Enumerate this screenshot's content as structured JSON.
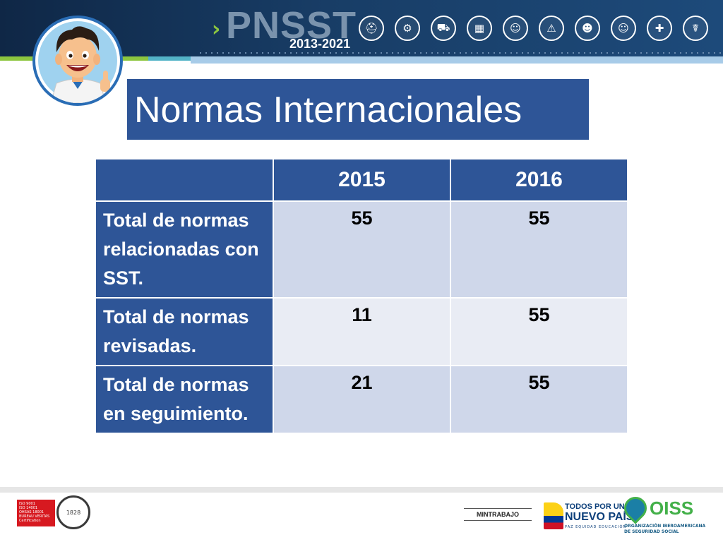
{
  "header": {
    "brand_name": "PNSST",
    "brand_years": "2013-2021",
    "icons": [
      "construction-worker-icon",
      "factory-icon",
      "truck-icon",
      "building-icon",
      "helmet-icon",
      "oil-rig-icon",
      "worker-icon",
      "safety-worker-icon",
      "nurse-icon",
      "doctor-icon"
    ]
  },
  "title": "Normas Internacionales",
  "table": {
    "columns": [
      "",
      "2015",
      "2016"
    ],
    "rows": [
      {
        "label": "Total de normas relacionadas con SST.",
        "values": [
          "55",
          "55"
        ]
      },
      {
        "label": "Total de normas revisadas.",
        "values": [
          "11",
          "55"
        ]
      },
      {
        "label": "Total de normas en seguimiento.",
        "values": [
          "21",
          "55"
        ]
      }
    ]
  },
  "footer": {
    "cert_text": "ISO 9001\nISO 14001\nOHSAS 18001\nBUREAU VERITAS\nCertification",
    "bv_seal_text": "1828",
    "mintrabajo": "MINTRABAJO",
    "tpun_line1": "TODOS POR UN",
    "tpun_line2": "NUEVO PAÍS",
    "tpun_line3": "PAZ  EQUIDAD  EDUCACIÓN",
    "oiss_name": "OISS",
    "oiss_sub1": "ORGANIZACIÓN IBEROAMERICANA",
    "oiss_sub2": "DE SEGURIDAD SOCIAL"
  },
  "colors": {
    "header_dark": "#0f2746",
    "accent_green": "#8cc63f",
    "table_header": "#2e5597",
    "row_light": "#e9ecf4",
    "row_medium": "#cfd7ea"
  }
}
